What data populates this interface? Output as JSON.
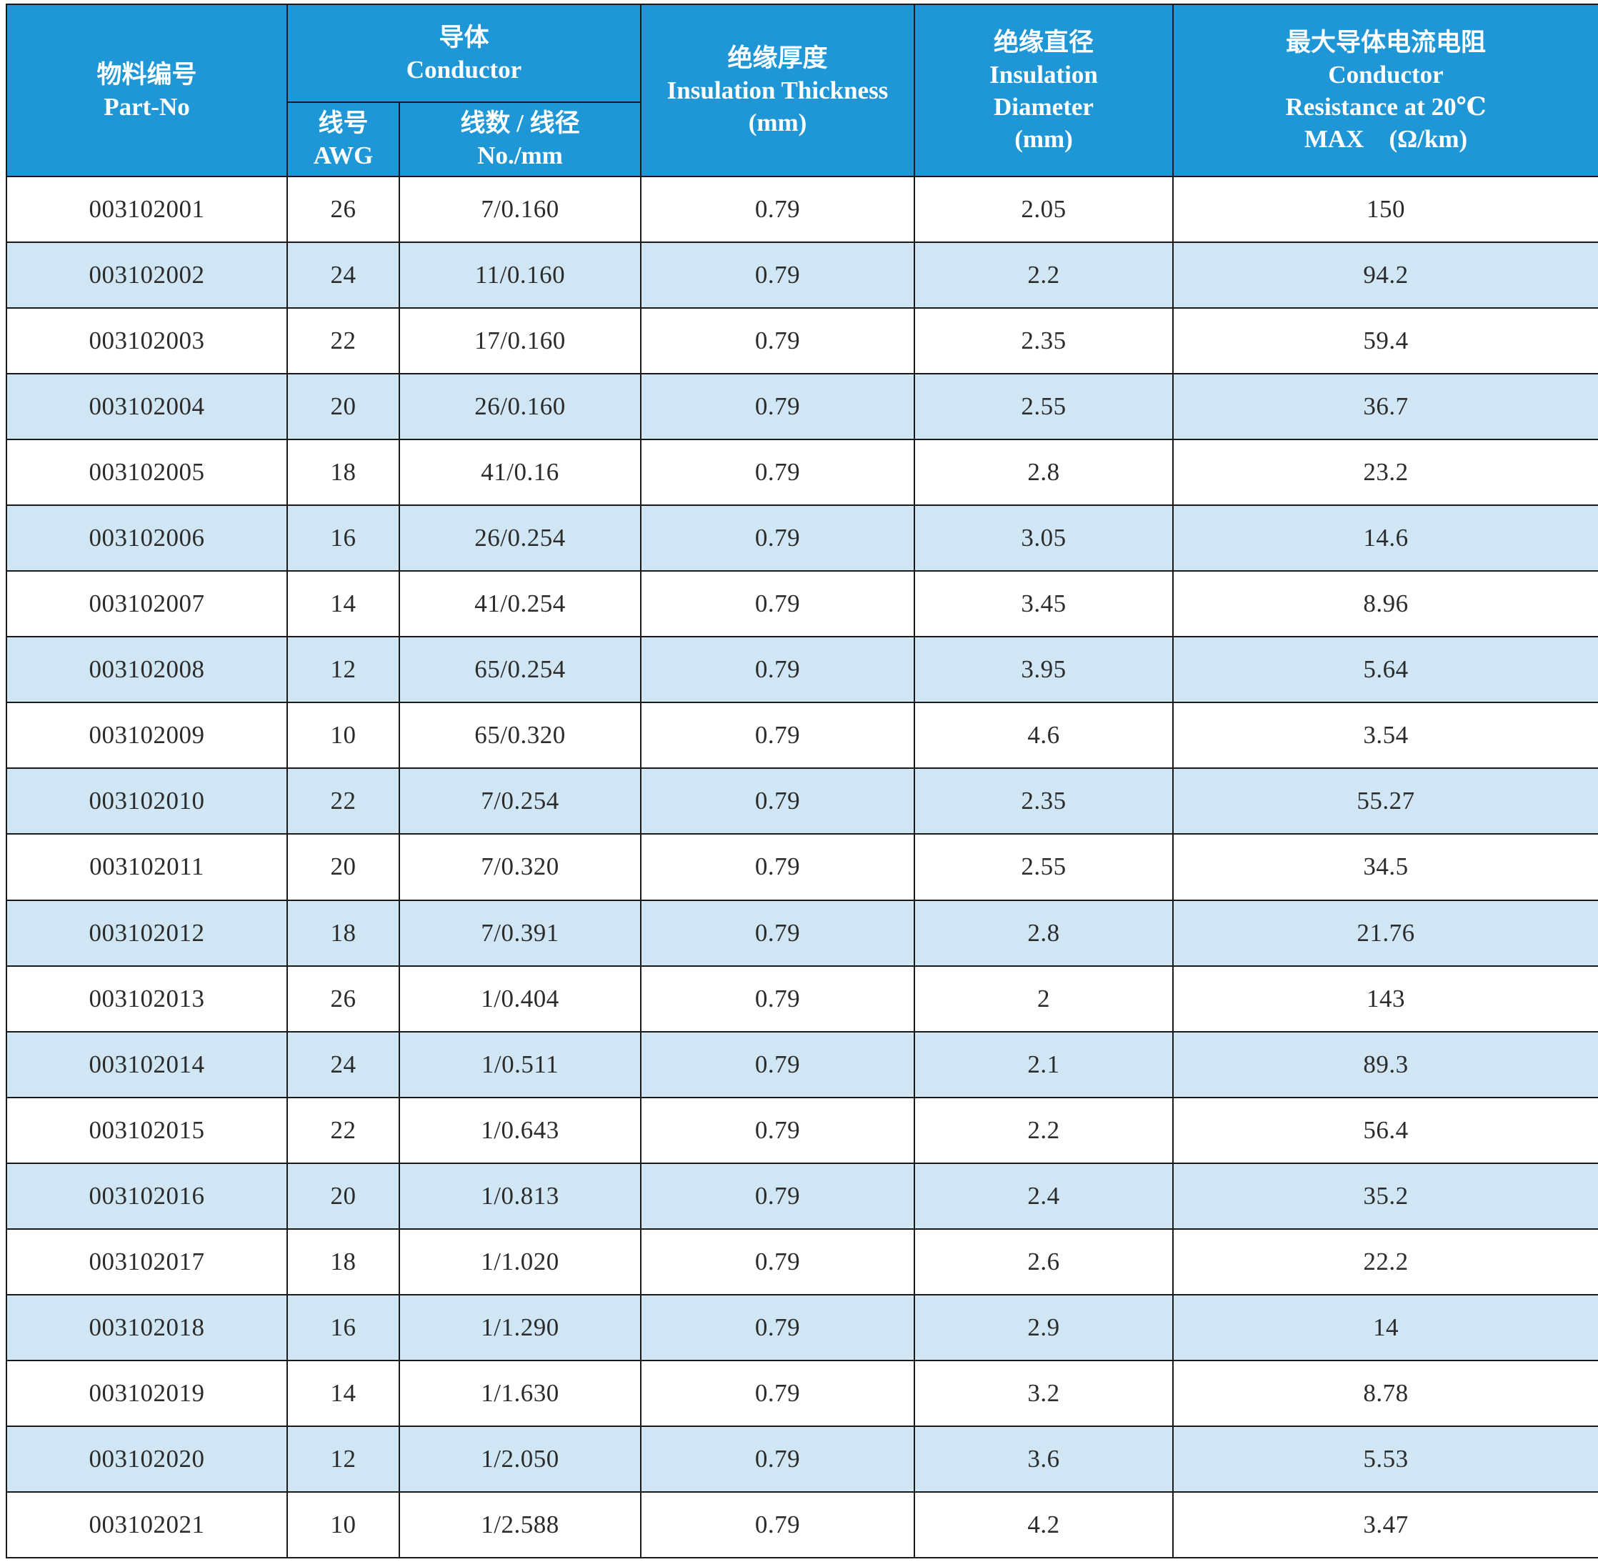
{
  "headers": {
    "part_no": {
      "cn": "物料编号",
      "en": "Part-No"
    },
    "conductor": {
      "cn": "导体",
      "en": "Conductor"
    },
    "awg": {
      "cn": "线号",
      "en": "AWG"
    },
    "strand": {
      "cn": "线数 / 线径",
      "en": "No./mm"
    },
    "insulation_thickness": {
      "cn": "绝缘厚度",
      "en": "Insulation Thickness",
      "unit": "(mm)"
    },
    "insulation_diameter": {
      "cn": "绝缘直径",
      "en1": "Insulation",
      "en2": "Diameter",
      "unit": "(mm)"
    },
    "resistance": {
      "cn": "最大导体电流电阻",
      "en1": "Conductor",
      "en2": "Resistance at 20℃",
      "unit": "MAX　(Ω/km)"
    }
  },
  "rows": [
    [
      "003102001",
      "26",
      "7/0.160",
      "0.79",
      "2.05",
      "150"
    ],
    [
      "003102002",
      "24",
      "11/0.160",
      "0.79",
      "2.2",
      "94.2"
    ],
    [
      "003102003",
      "22",
      "17/0.160",
      "0.79",
      "2.35",
      "59.4"
    ],
    [
      "003102004",
      "20",
      "26/0.160",
      "0.79",
      "2.55",
      "36.7"
    ],
    [
      "003102005",
      "18",
      "41/0.16",
      "0.79",
      "2.8",
      "23.2"
    ],
    [
      "003102006",
      "16",
      "26/0.254",
      "0.79",
      "3.05",
      "14.6"
    ],
    [
      "003102007",
      "14",
      "41/0.254",
      "0.79",
      "3.45",
      "8.96"
    ],
    [
      "003102008",
      "12",
      "65/0.254",
      "0.79",
      "3.95",
      "5.64"
    ],
    [
      "003102009",
      "10",
      "65/0.320",
      "0.79",
      "4.6",
      "3.54"
    ],
    [
      "003102010",
      "22",
      "7/0.254",
      "0.79",
      "2.35",
      "55.27"
    ],
    [
      "003102011",
      "20",
      "7/0.320",
      "0.79",
      "2.55",
      "34.5"
    ],
    [
      "003102012",
      "18",
      "7/0.391",
      "0.79",
      "2.8",
      "21.76"
    ],
    [
      "003102013",
      "26",
      "1/0.404",
      "0.79",
      "2",
      "143"
    ],
    [
      "003102014",
      "24",
      "1/0.511",
      "0.79",
      "2.1",
      "89.3"
    ],
    [
      "003102015",
      "22",
      "1/0.643",
      "0.79",
      "2.2",
      "56.4"
    ],
    [
      "003102016",
      "20",
      "1/0.813",
      "0.79",
      "2.4",
      "35.2"
    ],
    [
      "003102017",
      "18",
      "1/1.020",
      "0.79",
      "2.6",
      "22.2"
    ],
    [
      "003102018",
      "16",
      "1/1.290",
      "0.79",
      "2.9",
      "14"
    ],
    [
      "003102019",
      "14",
      "1/1.630",
      "0.79",
      "3.2",
      "8.78"
    ],
    [
      "003102020",
      "12",
      "1/2.050",
      "0.79",
      "3.6",
      "5.53"
    ],
    [
      "003102021",
      "10",
      "1/2.588",
      "0.79",
      "4.2",
      "3.47"
    ]
  ],
  "colors": {
    "header_bg": "#1f97d6",
    "stripe_bg": "#d1e6f4",
    "border": "#1a1a1a"
  }
}
